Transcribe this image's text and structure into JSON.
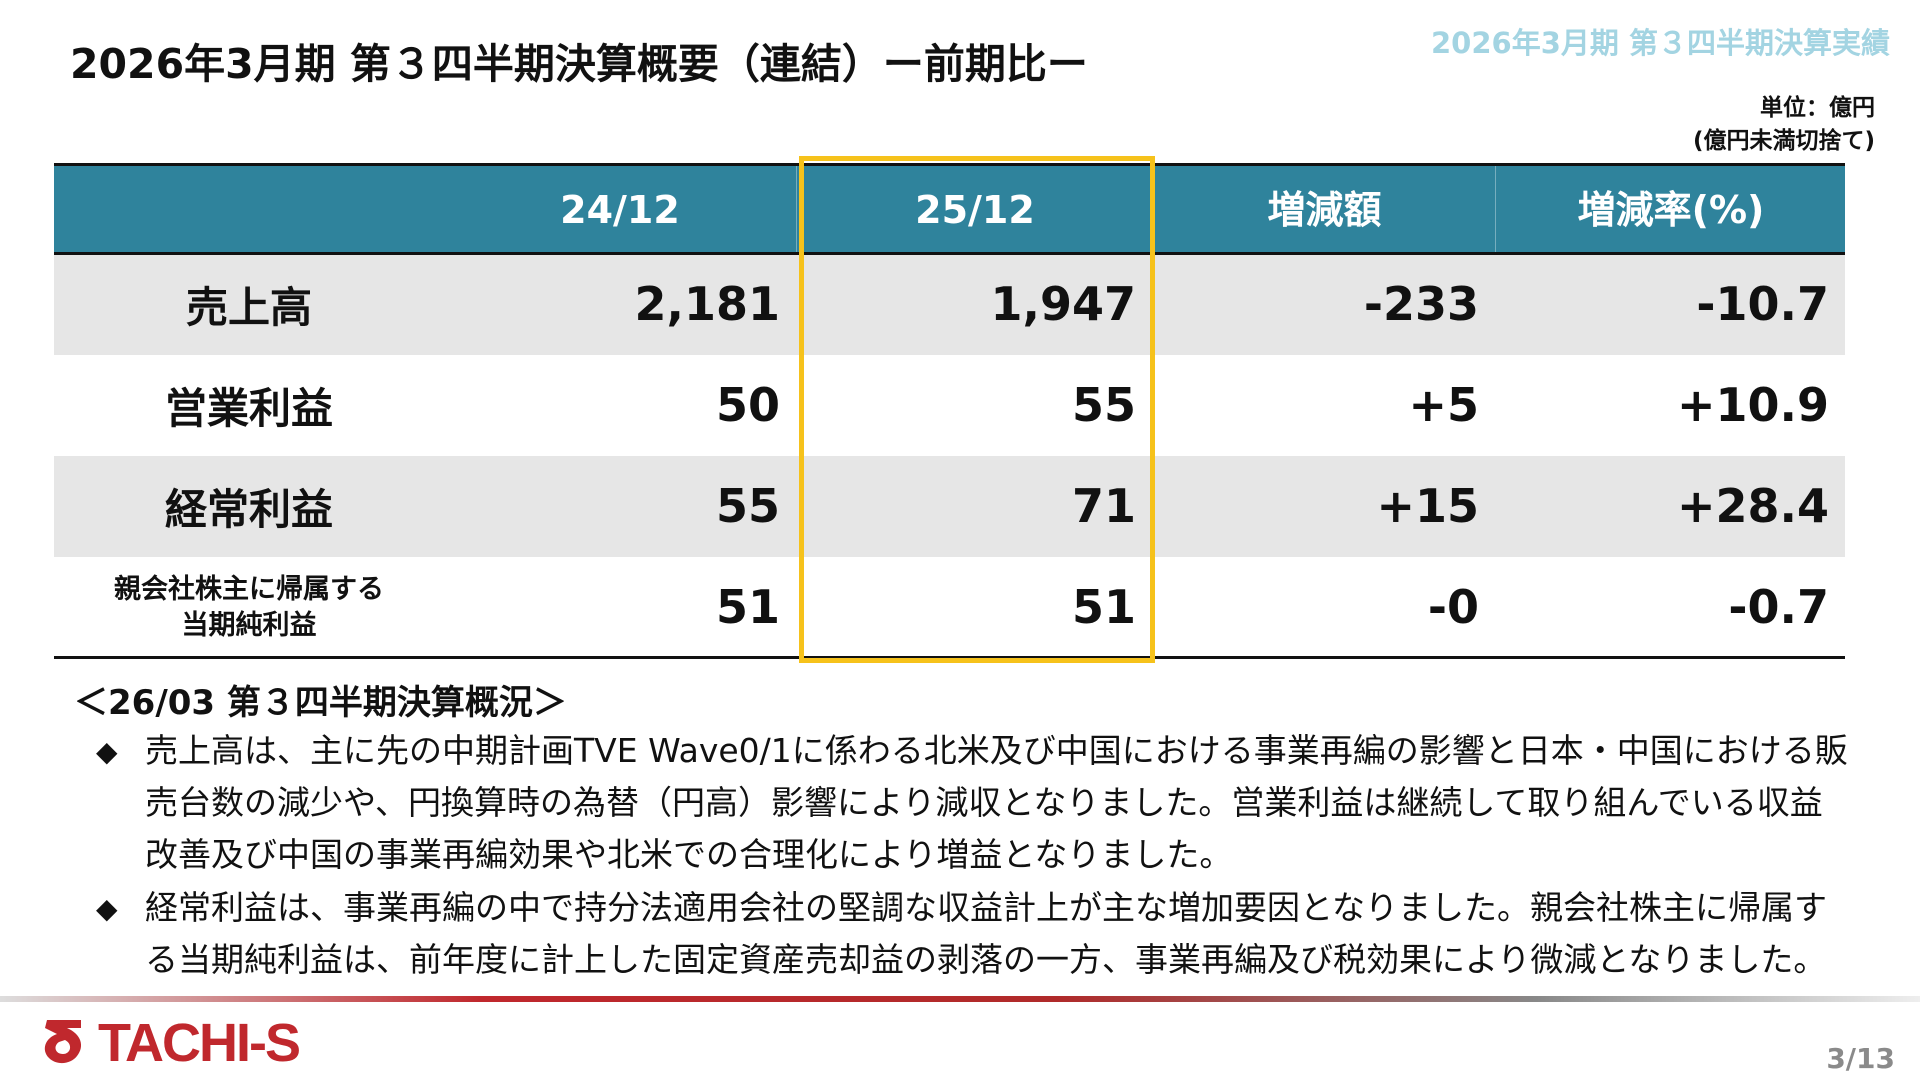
{
  "header": {
    "title": "2026年3月期 第３四半期決算概要（連結）ー前期比ー",
    "badge": "2026年3月期 第３四半期決算実績",
    "unit": "単位：億円",
    "unit_note": "(億円未満切捨て)"
  },
  "table": {
    "columns": [
      "24/12",
      "25/12",
      "増減額",
      "増減率(%)"
    ],
    "rows": [
      {
        "label": [
          "売上高"
        ],
        "values": [
          "2,181",
          "1,947",
          "-233",
          "-10.7"
        ]
      },
      {
        "label": [
          "営業利益"
        ],
        "values": [
          "50",
          "55",
          "+5",
          "+10.9"
        ]
      },
      {
        "label": [
          "経常利益"
        ],
        "values": [
          "55",
          "71",
          "+15",
          "+28.4"
        ]
      },
      {
        "label": [
          "親会社株主に帰属する",
          "当期純利益"
        ],
        "values": [
          "51",
          "51",
          "-0",
          "-0.7"
        ]
      }
    ]
  },
  "summary": {
    "heading": "＜26/03 第３四半期決算概況＞",
    "bullets": [
      "売上高は、主に先の中期計画TVE Wave0/1に係わる北米及び中国における事業再編の影響と日本・中国における販売台数の減少や、円換算時の為替（円高）影響により減収となりました。営業利益は継続して取り組んでいる収益改善及び中国の事業再編効果や北米での合理化により増益となりました。",
      "経常利益は、事業再編の中で持分法適用会社の堅調な収益計上が主な増加要因となりました。親会社株主に帰属する当期純利益は、前年度に計上した固定資産売却益の剥落の一方、事業再編及び税効果により微減となりました。"
    ]
  },
  "footer": {
    "logo": "TACHI-S",
    "page": "3/13"
  }
}
